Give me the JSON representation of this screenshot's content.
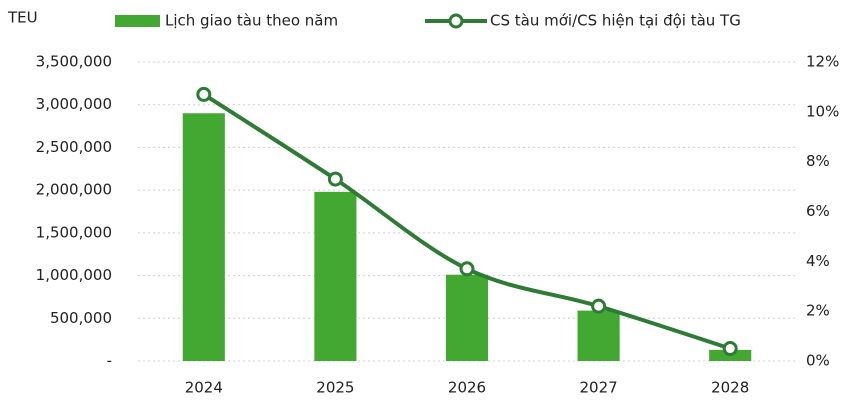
{
  "chart_data": {
    "type": "bar_line",
    "y_label": "TEU",
    "categories": [
      "2024",
      "2025",
      "2026",
      "2027",
      "2028"
    ],
    "series": [
      {
        "name": "Lịch giao tàu theo năm",
        "type": "bar",
        "color": "#43a832",
        "values": [
          2900000,
          1980000,
          1010000,
          590000,
          130000
        ]
      },
      {
        "name": "CS tàu mới/CS hiện tại đội tàu TG",
        "type": "line",
        "axis": "y2",
        "color": "#2e7b36",
        "values": [
          10.7,
          7.3,
          3.7,
          2.2,
          0.5
        ]
      }
    ],
    "ylim": [
      0,
      3500000
    ],
    "yticks": [
      {
        "value": 0,
        "label": "-"
      },
      {
        "value": 500000,
        "label": "500,000"
      },
      {
        "value": 1000000,
        "label": "1,000,000"
      },
      {
        "value": 1500000,
        "label": "1,500,000"
      },
      {
        "value": 2000000,
        "label": "2,000,000"
      },
      {
        "value": 2500000,
        "label": "2,500,000"
      },
      {
        "value": 3000000,
        "label": "3,000,000"
      },
      {
        "value": 3500000,
        "label": "3,500,000"
      }
    ],
    "y2lim": [
      0,
      12
    ],
    "y2ticks": [
      {
        "value": 0,
        "label": "0%"
      },
      {
        "value": 2,
        "label": "2%"
      },
      {
        "value": 4,
        "label": "4%"
      },
      {
        "value": 6,
        "label": "6%"
      },
      {
        "value": 8,
        "label": "8%"
      },
      {
        "value": 10,
        "label": "10%"
      },
      {
        "value": 12,
        "label": "12%"
      }
    ],
    "grid": true
  }
}
